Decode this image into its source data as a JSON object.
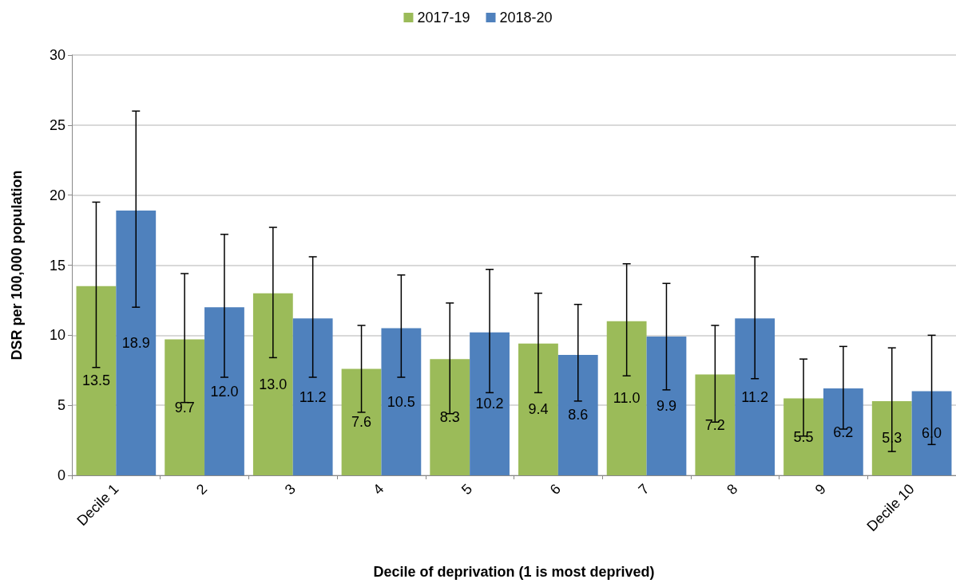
{
  "chart_data": {
    "type": "bar",
    "xlabel": "Decile of deprivation (1 is most deprived)",
    "ylabel": "DSR per 100,000 population",
    "categories": [
      "Decile 1",
      "2",
      "3",
      "4",
      "5",
      "6",
      "7",
      "8",
      "9",
      "Decile 10"
    ],
    "series": [
      {
        "name": "2017-19",
        "color": "#9bbb59",
        "values": [
          13.5,
          9.7,
          13.0,
          7.6,
          8.3,
          9.4,
          11.0,
          7.2,
          5.5,
          5.3
        ],
        "value_labels": [
          "13.5",
          "9.7",
          "13.0",
          "7.6",
          "8.3",
          "9.4",
          "11.0",
          "7.2",
          "5.5",
          "5.3"
        ],
        "errors": [
          [
            7.7,
            19.5
          ],
          [
            5.2,
            14.4
          ],
          [
            8.4,
            17.7
          ],
          [
            4.5,
            10.7
          ],
          [
            4.4,
            12.3
          ],
          [
            5.9,
            13.0
          ],
          [
            7.1,
            15.1
          ],
          [
            3.8,
            10.7
          ],
          [
            2.8,
            8.3
          ],
          [
            1.7,
            9.1
          ]
        ]
      },
      {
        "name": "2018-20",
        "color": "#4f81bd",
        "values": [
          18.9,
          12.0,
          11.2,
          10.5,
          10.2,
          8.6,
          9.9,
          11.2,
          6.2,
          6.0
        ],
        "value_labels": [
          "18.9",
          "12.0",
          "11.2",
          "10.5",
          "10.2",
          "8.6",
          "9.9",
          "11.2",
          "6.2",
          "6.0"
        ],
        "errors": [
          [
            12.0,
            26.0
          ],
          [
            7.0,
            17.2
          ],
          [
            7.0,
            15.6
          ],
          [
            7.0,
            14.3
          ],
          [
            5.9,
            14.7
          ],
          [
            5.3,
            12.2
          ],
          [
            6.1,
            13.7
          ],
          [
            6.9,
            15.6
          ],
          [
            3.3,
            9.2
          ],
          [
            2.2,
            10.0
          ]
        ]
      }
    ],
    "ylim": [
      0,
      30
    ],
    "yticks": [
      0,
      5,
      10,
      15,
      20,
      25,
      30
    ],
    "grid": "y",
    "legend": "top"
  }
}
